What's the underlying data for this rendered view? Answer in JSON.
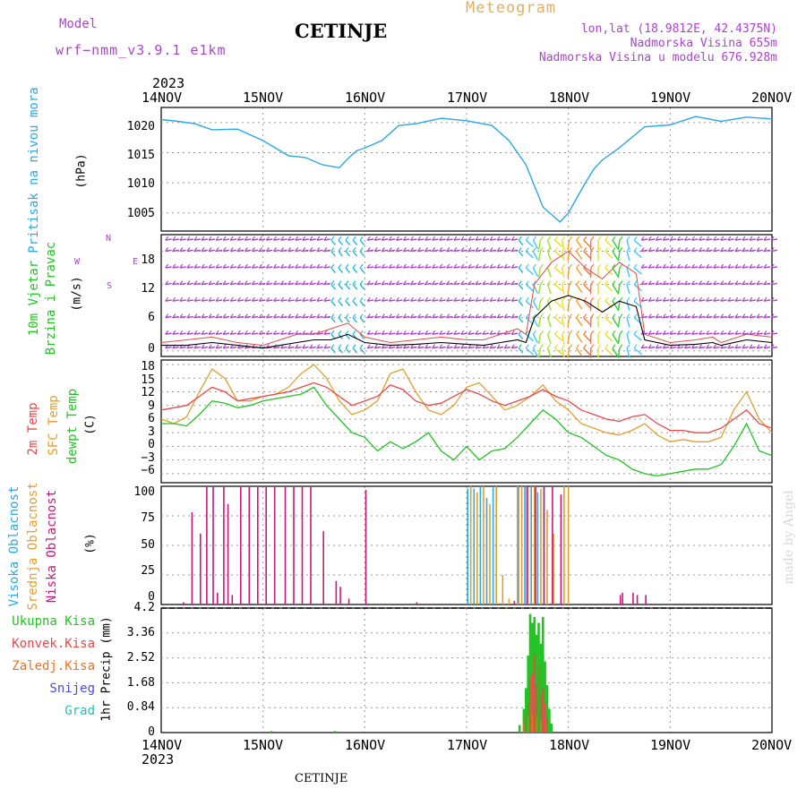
{
  "header": {
    "model_label": "Model",
    "model_name": "wrf−nmm_v3.9.1  e1km",
    "station": "CETINJE",
    "title": "Meteogram",
    "lonlat": "lon,lat (18.9812E, 42.4375N)",
    "altitude": "Nadmorska Visina 655m",
    "model_altitude": "Nadmorska Visina u modelu 676.928m",
    "footer_station": "CETINJE",
    "watermark": "made by Angel"
  },
  "time_axis": {
    "year_top": "2023",
    "year_bottom": "2023",
    "ticks": [
      "14NOV",
      "15NOV",
      "16NOV",
      "17NOV",
      "18NOV",
      "19NOV",
      "20NOV"
    ]
  },
  "colors": {
    "pressure": "#2aa8e8",
    "wind_title": "#22c322",
    "wind_dir": "#aa44cc",
    "temp2m": "#e84848",
    "sfc": "#e0a030",
    "dewpt": "#22c322",
    "cloud_high": "#2aa8e8",
    "cloud_mid": "#e0a030",
    "cloud_low": "#c8187a",
    "precip_total": "#22c322",
    "precip_conv": "#e84848",
    "precip_frozen": "#f07020",
    "snow": "#4a4ae0",
    "grad": "#22c0c0"
  },
  "panels": {
    "pressure": {
      "label": "Pritisak na nivou mora",
      "unit": "(hPa)",
      "ticks": [
        "1020",
        "1015",
        "1010",
        "1005"
      ]
    },
    "wind": {
      "label1": "10m Vjetar",
      "label2": "Brzina i Pravac",
      "unit": "(m/s)",
      "dir_n": "N",
      "dir_w": "W",
      "dir_e": "E",
      "dir_s": "S",
      "ticks": [
        "18",
        "12",
        "6",
        "0"
      ]
    },
    "temp": {
      "label1": "2m Temp",
      "label2": "SFC Temp",
      "label3": "dewpt Temp",
      "unit": "(C)",
      "ticks": [
        "18",
        "15",
        "12",
        "9",
        "6",
        "3",
        "0",
        "−3",
        "−6"
      ]
    },
    "cloud": {
      "label1": "Visoka Oblacnost",
      "label2": "Srednja Oblacnost",
      "label3": "Niska Oblacnost",
      "unit": "(%)",
      "ticks": [
        "100",
        "75",
        "50",
        "25",
        "0"
      ]
    },
    "precip": {
      "unit": "1hr Precip (mm)",
      "legend": [
        "Ukupna Kisa",
        "Konvek.Kisa",
        "Zaledj.Kisa",
        "Snijeg",
        "Grad"
      ],
      "ticks": [
        "4.2",
        "3.36",
        "2.52",
        "1.68",
        "0.84",
        "0"
      ]
    }
  },
  "chart_data": [
    {
      "type": "line",
      "title": "",
      "ylabel": "Pritisak na nivou mora (hPa)",
      "ylim": [
        1002,
        1022.5
      ],
      "x_unit": "hours since 14NOV 00",
      "x": [
        0,
        4,
        8,
        12,
        18,
        24,
        30,
        34,
        38,
        42,
        44,
        46,
        48,
        52,
        56,
        60,
        66,
        72,
        78,
        82,
        86,
        90,
        94,
        96,
        98,
        100,
        102,
        104,
        108,
        114,
        120,
        126,
        132,
        138,
        144
      ],
      "series": [
        {
          "name": "",
          "values": [
            1020.5,
            1020.2,
            1019.8,
            1018.8,
            1018.9,
            1017.0,
            1014.5,
            1014.2,
            1013.0,
            1012.5,
            1014.0,
            1015.3,
            1015.8,
            1017.0,
            1019.5,
            1019.8,
            1020.7,
            1020.3,
            1019.5,
            1017.0,
            1013.0,
            1006.0,
            1003.5,
            1005.0,
            1007.5,
            1010.0,
            1012.3,
            1013.8,
            1015.8,
            1019.3,
            1019.6,
            1021.0,
            1020.2,
            1020.9,
            1020.6
          ]
        }
      ]
    },
    {
      "type": "line",
      "title": "",
      "ylabel": "10m Vjetar Brzina i Pravac (m/s)",
      "ylim": [
        -1,
        21
      ],
      "x_unit": "hours since 14NOV 00",
      "x": [
        0,
        6,
        12,
        18,
        24,
        28,
        32,
        36,
        40,
        44,
        48,
        54,
        60,
        66,
        72,
        76,
        80,
        84,
        86,
        88,
        92,
        96,
        100,
        104,
        108,
        112,
        114,
        120,
        126,
        130,
        132,
        138,
        144
      ],
      "series": [
        {
          "name": "",
          "values": [
            1,
            1,
            1.5,
            1,
            0.5,
            1,
            1.5,
            2,
            2,
            3,
            1.5,
            1,
            1.2,
            1.5,
            1.2,
            1,
            1.5,
            2,
            1.5,
            6,
            9,
            10,
            9,
            7,
            9,
            8,
            2,
            1,
            1.2,
            1.5,
            1,
            2,
            1.5
          ]
        },
        {
          "name": "",
          "values": [
            1.5,
            2,
            2.5,
            1.5,
            1,
            2,
            3,
            3,
            4,
            5,
            2.5,
            1.5,
            2,
            2.5,
            2,
            2,
            3,
            4,
            3,
            12,
            16,
            18,
            15,
            13,
            16,
            14,
            3,
            1.5,
            2,
            2.5,
            1.5,
            3,
            2.5
          ]
        }
      ]
    },
    {
      "type": "line",
      "title": "",
      "ylabel": "Temp (C)",
      "ylim": [
        -8,
        19
      ],
      "x_unit": "hours since 14NOV 00",
      "x": [
        0,
        3,
        6,
        9,
        12,
        15,
        18,
        21,
        24,
        27,
        30,
        33,
        36,
        39,
        42,
        45,
        48,
        51,
        54,
        57,
        60,
        63,
        66,
        69,
        72,
        75,
        78,
        81,
        84,
        87,
        90,
        93,
        96,
        99,
        102,
        105,
        108,
        111,
        114,
        117,
        120,
        123,
        126,
        129,
        132,
        135,
        138,
        141,
        144
      ],
      "series": [
        {
          "name": "2m Temp",
          "values": [
            8,
            8.5,
            9,
            11,
            13,
            12,
            10,
            10.5,
            11,
            11.5,
            12,
            13,
            14,
            13,
            11,
            9,
            10,
            11,
            13.5,
            12.5,
            10,
            9,
            9.5,
            11,
            12.5,
            11.5,
            10,
            9,
            10,
            11,
            12.5,
            11,
            10,
            8,
            7,
            6,
            5.5,
            6.5,
            7,
            5,
            3.5,
            3.5,
            3,
            3,
            4,
            6,
            8,
            5,
            4
          ]
        },
        {
          "name": "SFC Temp",
          "values": [
            6,
            5,
            6.5,
            12,
            17,
            15,
            10,
            10,
            11,
            11.5,
            13,
            16,
            18,
            15,
            10,
            7,
            8,
            10,
            16,
            17,
            12,
            8,
            7,
            9,
            13,
            14,
            11,
            8,
            9,
            11,
            13.5,
            10,
            8,
            5,
            4,
            3,
            2.5,
            3.5,
            5,
            2.5,
            1,
            1.5,
            1,
            1,
            2,
            8,
            12,
            6,
            3
          ]
        },
        {
          "name": "dewpt Temp",
          "values": [
            5,
            5,
            4.5,
            7,
            10,
            9.5,
            8.5,
            9,
            10,
            10.5,
            11,
            11.5,
            13,
            9,
            6,
            3,
            2,
            -1,
            1,
            -0.5,
            1,
            3,
            -1,
            -3,
            0,
            -3,
            -1,
            -0.5,
            2,
            5,
            8,
            6,
            3,
            2,
            0,
            -2,
            -3,
            -5,
            -6,
            -6.5,
            -6,
            -5.5,
            -5,
            -5,
            -4,
            0,
            5,
            -1,
            -2
          ]
        }
      ]
    },
    {
      "type": "bar",
      "title": "",
      "ylabel": "Oblacnost (%)",
      "ylim": [
        0,
        100
      ],
      "x_unit": "hours since 14NOV 00",
      "series": [
        {
          "name": "Visoka Oblacnost",
          "x": [
            72.5,
            74,
            75.5,
            77,
            78.5,
            84.5,
            86,
            87.5,
            89,
            90.5
          ],
          "values": [
            98,
            98,
            100,
            90,
            99,
            100,
            100,
            100,
            95,
            99
          ]
        },
        {
          "name": "Srednja Oblacnost",
          "x": [
            73,
            74.5,
            76,
            77.5,
            79,
            80.5,
            82,
            84,
            85,
            86.5,
            88,
            89.5,
            91,
            92.5,
            95,
            96
          ],
          "values": [
            100,
            95,
            100,
            85,
            100,
            25,
            5,
            100,
            100,
            99,
            100,
            98,
            80,
            60,
            100,
            100
          ]
        },
        {
          "name": "Niska Oblacnost",
          "x": [
            5,
            7,
            9,
            10.5,
            12,
            13,
            14.5,
            15.5,
            16.5,
            18.5,
            20.5,
            22.5,
            24.5,
            26.5,
            29,
            31,
            33,
            35,
            38,
            41,
            42,
            44,
            48,
            60,
            83,
            86,
            88,
            90,
            92,
            94,
            108,
            108.5,
            111,
            112,
            114
          ],
          "values": [
            2,
            78,
            60,
            100,
            100,
            10,
            100,
            85,
            8,
            100,
            100,
            100,
            100,
            100,
            100,
            100,
            100,
            100,
            62,
            20,
            15,
            5,
            97,
            2,
            3,
            100,
            100,
            100,
            100,
            93,
            8,
            10,
            10,
            8,
            8
          ]
        }
      ]
    },
    {
      "type": "bar",
      "title": "",
      "ylabel": "1hr Precip (mm)",
      "ylim": [
        0,
        4.2
      ],
      "x_unit": "hours since 14NOV 00",
      "series": [
        {
          "name": "Ukupna Kisa",
          "x": [
            26,
            41,
            84.5,
            85.5,
            86,
            86.5,
            87,
            87.5,
            88,
            88.5,
            89,
            89.5,
            90,
            90.5,
            91,
            91.5,
            92
          ],
          "values": [
            0.05,
            0.05,
            0.25,
            0.8,
            1.5,
            2.6,
            4.0,
            3.7,
            3.9,
            3.3,
            3.7,
            3.0,
            3.9,
            2.4,
            1.6,
            0.8,
            0.3
          ]
        },
        {
          "name": "Konvek.Kisa",
          "x": [
            86,
            86.5,
            87,
            87.5,
            88,
            88.5,
            89,
            89.5,
            90,
            90.5,
            91
          ],
          "values": [
            0.6,
            1.0,
            1.9,
            2.0,
            2.6,
            1.6,
            2.3,
            1.3,
            1.5,
            1.0,
            0.5
          ]
        },
        {
          "name": "Zaledj.Kisa",
          "x": [
            85.5,
            86.5,
            87.5,
            88.5,
            89.5
          ],
          "values": [
            0.3,
            0.5,
            0.6,
            0.5,
            0.4
          ]
        }
      ]
    }
  ]
}
